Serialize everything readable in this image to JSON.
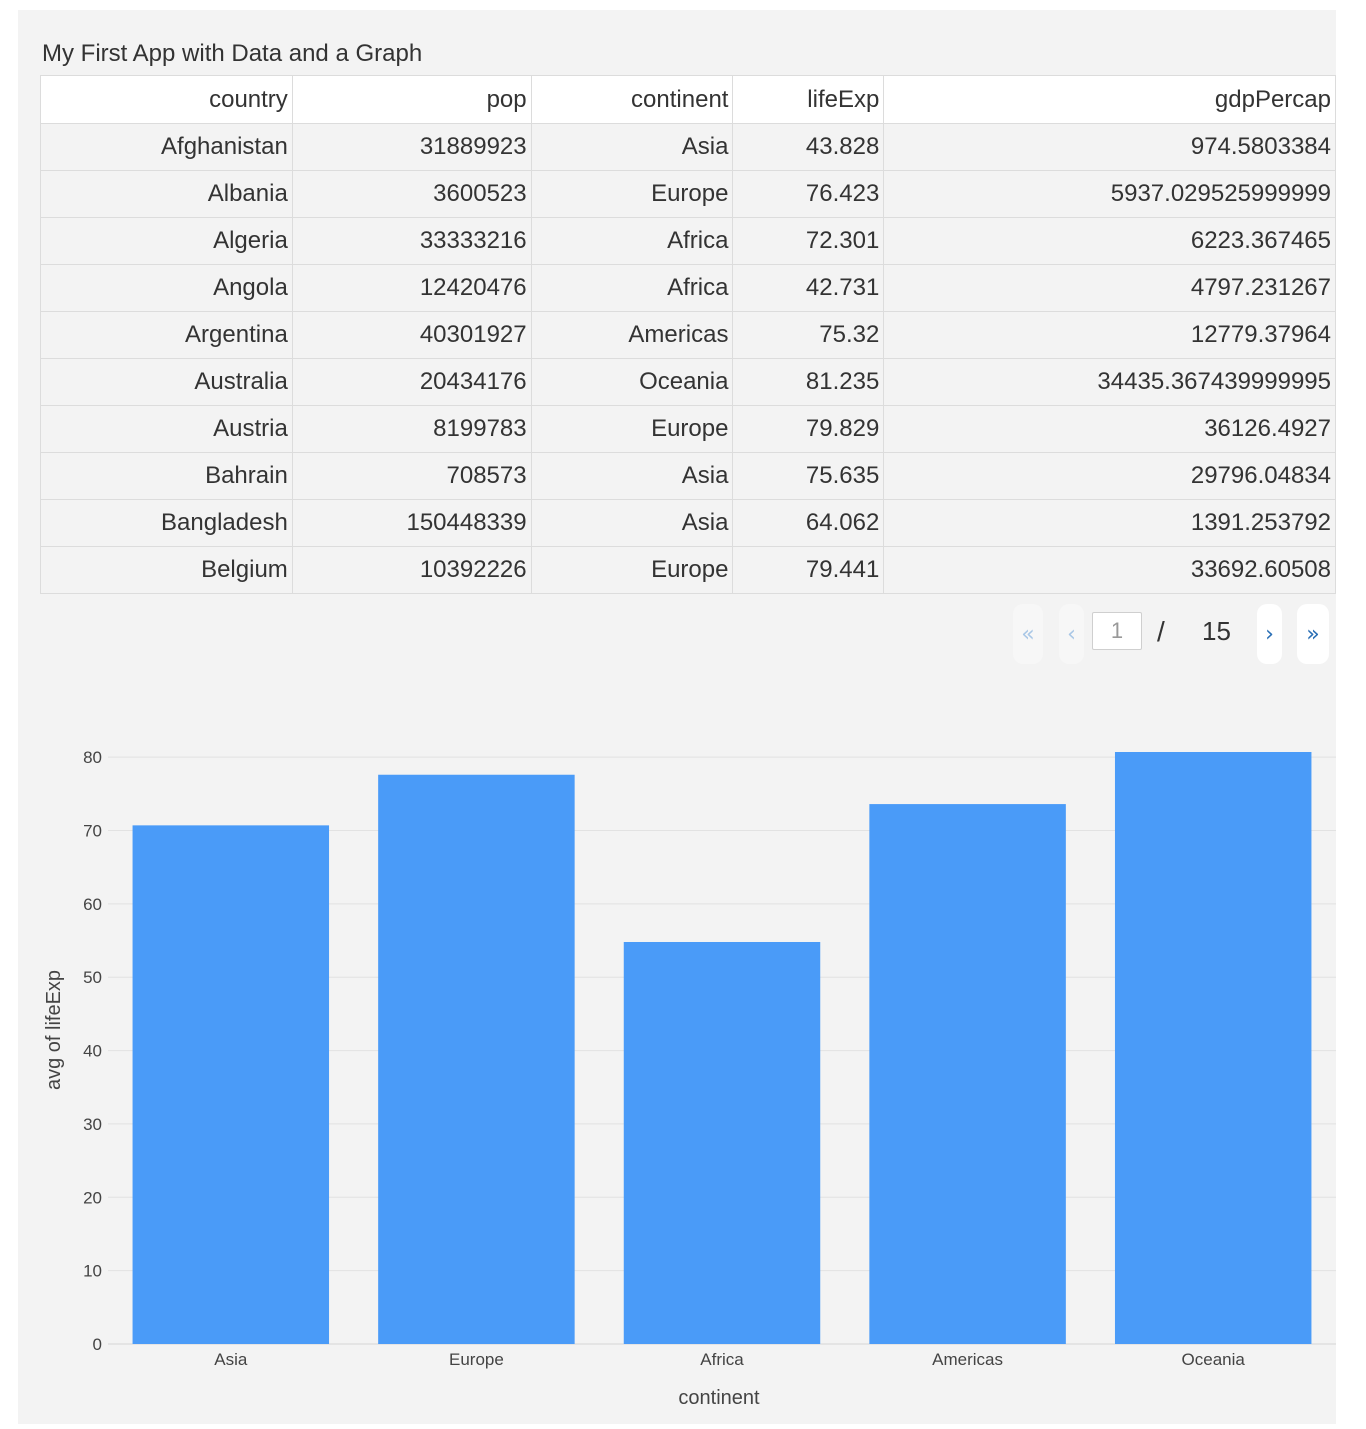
{
  "app": {
    "title": "My First App with Data and a Graph"
  },
  "table": {
    "columns": [
      "country",
      "pop",
      "continent",
      "lifeExp",
      "gdpPercap"
    ],
    "rows": [
      [
        "Afghanistan",
        "31889923",
        "Asia",
        "43.828",
        "974.5803384"
      ],
      [
        "Albania",
        "3600523",
        "Europe",
        "76.423",
        "5937.029525999999"
      ],
      [
        "Algeria",
        "33333216",
        "Africa",
        "72.301",
        "6223.367465"
      ],
      [
        "Angola",
        "12420476",
        "Africa",
        "42.731",
        "4797.231267"
      ],
      [
        "Argentina",
        "40301927",
        "Americas",
        "75.32",
        "12779.37964"
      ],
      [
        "Australia",
        "20434176",
        "Oceania",
        "81.235",
        "34435.367439999995"
      ],
      [
        "Austria",
        "8199783",
        "Europe",
        "79.829",
        "36126.4927"
      ],
      [
        "Bahrain",
        "708573",
        "Asia",
        "75.635",
        "29796.04834"
      ],
      [
        "Bangladesh",
        "150448339",
        "Asia",
        "64.062",
        "1391.253792"
      ],
      [
        "Belgium",
        "10392226",
        "Europe",
        "79.441",
        "33692.60508"
      ]
    ]
  },
  "pagination": {
    "first_label": "«",
    "prev_label": "‹",
    "next_label": "›",
    "last_label": "»",
    "current_page": "1",
    "separator": "/",
    "total_pages": "15"
  },
  "chart_data": {
    "type": "bar",
    "categories": [
      "Asia",
      "Europe",
      "Africa",
      "Americas",
      "Oceania"
    ],
    "values": [
      70.7,
      77.6,
      54.8,
      73.6,
      80.7
    ],
    "title": "",
    "xlabel": "continent",
    "ylabel": "avg of lifeExp",
    "ylim": [
      0,
      80.7
    ],
    "yticks": [
      0,
      10,
      20,
      30,
      40,
      50,
      60,
      70,
      80
    ],
    "grid": true,
    "bar_color": "#4a9bf8"
  }
}
